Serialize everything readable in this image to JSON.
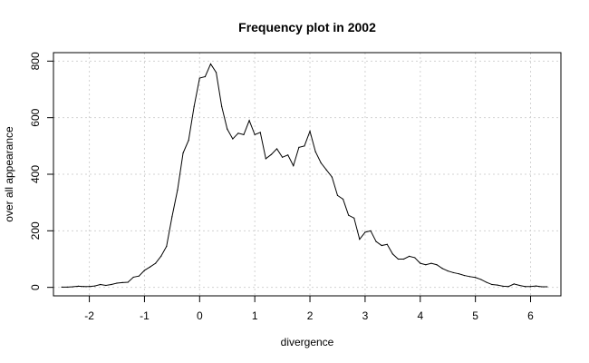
{
  "chart_data": {
    "type": "line",
    "title": "Frequency plot in 2002",
    "xlabel": "divergence",
    "ylabel": "over all appearance",
    "xlim": [
      -2.65,
      6.55
    ],
    "ylim": [
      -30,
      830
    ],
    "xticks": [
      -2,
      -1,
      0,
      1,
      2,
      3,
      4,
      5,
      6
    ],
    "yticks": [
      0,
      200,
      400,
      600,
      800
    ],
    "grid": true,
    "series": [
      {
        "name": "",
        "color": "#000000",
        "x": [
          -2.5,
          -2.4,
          -2.3,
          -2.2,
          -2.1,
          -2.0,
          -1.9,
          -1.8,
          -1.7,
          -1.6,
          -1.5,
          -1.4,
          -1.3,
          -1.2,
          -1.1,
          -1.0,
          -0.9,
          -0.8,
          -0.7,
          -0.6,
          -0.5,
          -0.4,
          -0.3,
          -0.2,
          -0.1,
          0.0,
          0.1,
          0.2,
          0.3,
          0.4,
          0.5,
          0.6,
          0.7,
          0.8,
          0.9,
          1.0,
          1.1,
          1.2,
          1.3,
          1.4,
          1.5,
          1.6,
          1.7,
          1.8,
          1.9,
          2.0,
          2.1,
          2.2,
          2.3,
          2.4,
          2.5,
          2.6,
          2.7,
          2.8,
          2.9,
          3.0,
          3.1,
          3.2,
          3.3,
          3.4,
          3.5,
          3.6,
          3.7,
          3.8,
          3.9,
          4.0,
          4.1,
          4.2,
          4.3,
          4.4,
          4.5,
          4.6,
          4.7,
          4.8,
          4.9,
          5.0,
          5.1,
          5.2,
          5.3,
          5.4,
          5.5,
          5.6,
          5.7,
          5.8,
          5.9,
          6.0,
          6.1,
          6.2,
          6.3
        ],
        "y": [
          1,
          1,
          2,
          4,
          3,
          3,
          5,
          10,
          7,
          10,
          15,
          17,
          18,
          36,
          40,
          60,
          72,
          85,
          110,
          145,
          250,
          345,
          475,
          520,
          640,
          740,
          745,
          790,
          760,
          640,
          560,
          525,
          545,
          540,
          590,
          540,
          548,
          455,
          470,
          490,
          460,
          468,
          430,
          495,
          500,
          552,
          480,
          440,
          415,
          390,
          325,
          312,
          255,
          245,
          170,
          195,
          200,
          162,
          148,
          152,
          118,
          100,
          100,
          110,
          105,
          85,
          80,
          85,
          80,
          67,
          58,
          52,
          48,
          42,
          38,
          35,
          28,
          18,
          10,
          8,
          4,
          3,
          12,
          7,
          3,
          3,
          5,
          2,
          2
        ]
      }
    ]
  }
}
